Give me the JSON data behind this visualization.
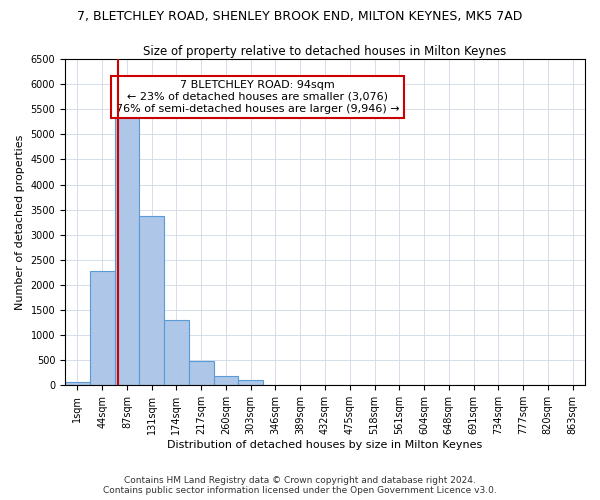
{
  "title": "7, BLETCHLEY ROAD, SHENLEY BROOK END, MILTON KEYNES, MK5 7AD",
  "subtitle": "Size of property relative to detached houses in Milton Keynes",
  "xlabel": "Distribution of detached houses by size in Milton Keynes",
  "ylabel": "Number of detached properties",
  "bar_labels": [
    "1sqm",
    "44sqm",
    "87sqm",
    "131sqm",
    "174sqm",
    "217sqm",
    "260sqm",
    "303sqm",
    "346sqm",
    "389sqm",
    "432sqm",
    "475sqm",
    "518sqm",
    "561sqm",
    "604sqm",
    "648sqm",
    "691sqm",
    "734sqm",
    "777sqm",
    "820sqm",
    "863sqm"
  ],
  "bar_values": [
    60,
    2280,
    5470,
    3380,
    1310,
    480,
    190,
    95,
    0,
    0,
    0,
    0,
    0,
    0,
    0,
    0,
    0,
    0,
    0,
    0,
    0
  ],
  "bar_color": "#aec6e8",
  "bar_edge_color": "#5b9bd5",
  "vline_x": 1.62,
  "vline_color": "#cc0000",
  "ylim": [
    0,
    6500
  ],
  "yticks": [
    0,
    500,
    1000,
    1500,
    2000,
    2500,
    3000,
    3500,
    4000,
    4500,
    5000,
    5500,
    6000,
    6500
  ],
  "annotation_title": "7 BLETCHLEY ROAD: 94sqm",
  "annotation_line1": "← 23% of detached houses are smaller (3,076)",
  "annotation_line2": "76% of semi-detached houses are larger (9,946) →",
  "annotation_box_color": "#cc0000",
  "footer1": "Contains HM Land Registry data © Crown copyright and database right 2024.",
  "footer2": "Contains public sector information licensed under the Open Government Licence v3.0.",
  "background_color": "#ffffff",
  "grid_color": "#d0d8e8",
  "title_fontsize": 9,
  "subtitle_fontsize": 8.5,
  "axis_label_fontsize": 8,
  "tick_fontsize": 7,
  "annotation_fontsize": 8,
  "footer_fontsize": 6.5
}
